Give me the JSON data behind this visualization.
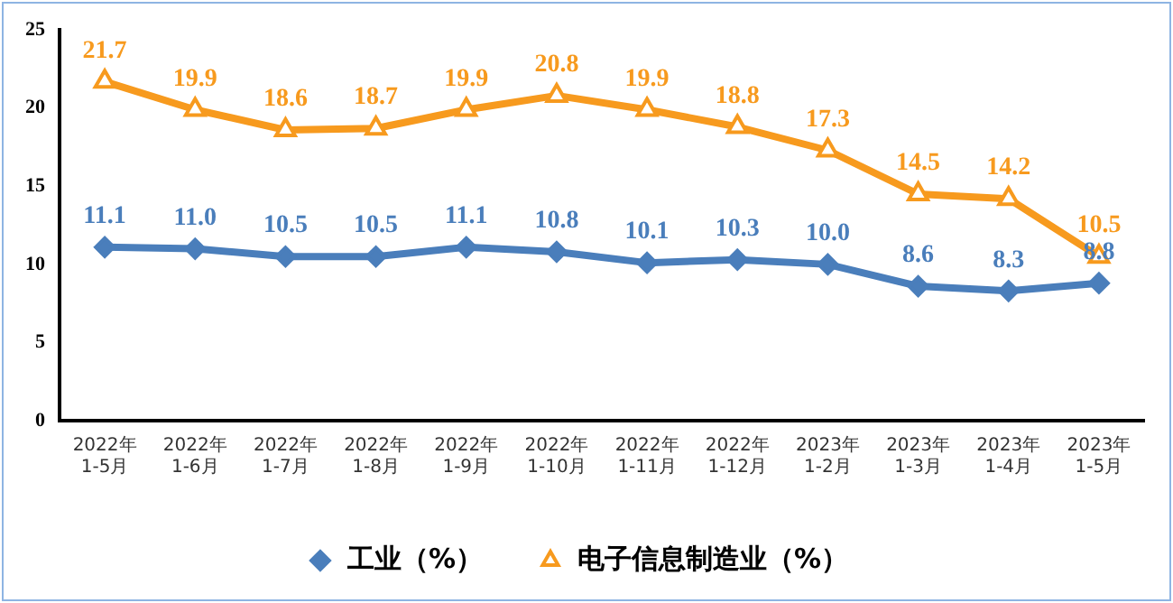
{
  "chart_data": {
    "type": "line",
    "categories": [
      "2022年\n1-5月",
      "2022年\n1-6月",
      "2022年\n1-7月",
      "2022年\n1-8月",
      "2022年\n1-9月",
      "2022年\n1-10月",
      "2022年\n1-11月",
      "2022年\n1-12月",
      "2023年\n1-2月",
      "2023年\n1-3月",
      "2023年\n1-4月",
      "2023年\n1-5月"
    ],
    "series": [
      {
        "name": "工业（%）",
        "color": "#4a7ebb",
        "marker": "diamond",
        "values": [
          11.1,
          11.0,
          10.5,
          10.5,
          11.1,
          10.8,
          10.1,
          10.3,
          10.0,
          8.6,
          8.3,
          8.8
        ],
        "value_labels": [
          "11.1",
          "11.0",
          "10.5",
          "10.5",
          "11.1",
          "10.8",
          "10.1",
          "10.3",
          "10.0",
          "8.6",
          "8.3",
          "8.8"
        ]
      },
      {
        "name": "电子信息制造业（%）",
        "color": "#f79a1e",
        "marker": "triangle",
        "values": [
          21.7,
          19.9,
          18.6,
          18.7,
          19.9,
          20.8,
          19.9,
          18.8,
          17.3,
          14.5,
          14.2,
          10.5
        ],
        "value_labels": [
          "21.7",
          "19.9",
          "18.6",
          "18.7",
          "19.9",
          "20.8",
          "19.9",
          "18.8",
          "17.3",
          "14.5",
          "14.2",
          "10.5"
        ]
      }
    ],
    "ylim": [
      0,
      25
    ],
    "yticks": [
      0,
      5,
      10,
      15,
      20,
      25
    ],
    "grid": false,
    "legend": "bottom"
  }
}
